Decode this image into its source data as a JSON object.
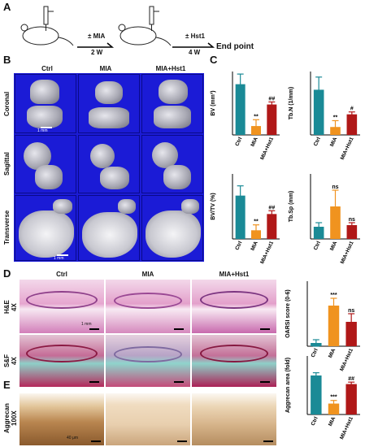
{
  "panel_letters": {
    "A": "A",
    "B": "B",
    "C": "C",
    "D": "D",
    "E": "E"
  },
  "schematic": {
    "step1_label": "± MIA",
    "step1_time": "2 W",
    "step2_label": "± Hst1",
    "step2_time": "4 W",
    "endpoint": "End point"
  },
  "microct": {
    "columns": [
      "Ctrl",
      "MIA",
      "MIA+Hst1"
    ],
    "rows": [
      "Coronal",
      "Sagittal",
      "Transverse"
    ],
    "scale_coronal": "1 mm",
    "scale_transverse": "1 mm"
  },
  "histology": {
    "columns": [
      "Ctrl",
      "MIA",
      "MIA+Hst1"
    ],
    "rows": [
      {
        "line1": "H&E",
        "line2": "4X"
      },
      {
        "line1": "S&F",
        "line2": "4X"
      }
    ],
    "scale_label": "1 mm"
  },
  "aggrecan": {
    "row_line1": "Aggrecan",
    "row_line2": "100X",
    "scale_label": "40 μm"
  },
  "colors": {
    "ctrl": "#1a8a96",
    "mia": "#f0931f",
    "hst1": "#b01818",
    "ct_background": "#1b1bd6"
  },
  "chart_data": [
    {
      "type": "bar",
      "ylabel": "BV (mm³)",
      "categories": [
        "Ctrl",
        "MIA",
        "MIA+Hst1"
      ],
      "values": [
        0.4,
        0.07,
        0.24
      ],
      "errors": [
        0.08,
        0.05,
        0.02
      ],
      "ylim": [
        0,
        0.5
      ],
      "annotations": [
        "",
        "**",
        "##"
      ]
    },
    {
      "type": "bar",
      "ylabel": "Tb.N (1/mm)",
      "categories": [
        "Ctrl",
        "MIA",
        "MIA+Hst1"
      ],
      "values": [
        5.7,
        1.0,
        2.6
      ],
      "errors": [
        1.6,
        0.8,
        0.3
      ],
      "ylim": [
        0,
        8
      ],
      "annotations": [
        "",
        "**",
        "#"
      ]
    },
    {
      "type": "bar",
      "ylabel": "BV/TV (%)",
      "categories": [
        "Ctrl",
        "MIA",
        "MIA+Hst1"
      ],
      "values": [
        40,
        8,
        23
      ],
      "errors": [
        9,
        5,
        3
      ],
      "ylim": [
        0,
        60
      ],
      "annotations": [
        "",
        "**",
        "##"
      ]
    },
    {
      "type": "bar",
      "ylabel": "Tb.Sp (mm)",
      "categories": [
        "Ctrl",
        "MIA",
        "MIA+Hst1"
      ],
      "values": [
        0.15,
        0.4,
        0.17
      ],
      "errors": [
        0.05,
        0.2,
        0.03
      ],
      "ylim": [
        0,
        0.8
      ],
      "annotations": [
        "",
        "ns",
        "ns"
      ]
    },
    {
      "type": "bar",
      "ylabel": "OARSI score (0-6)",
      "categories": [
        "Ctrl",
        "MIA",
        "MIA+Hst1"
      ],
      "values": [
        0.4,
        5.0,
        3.0
      ],
      "errors": [
        0.4,
        0.9,
        1.0
      ],
      "ylim": [
        0,
        8
      ],
      "annotations": [
        "",
        "***",
        "ns"
      ]
    },
    {
      "type": "bar",
      "ylabel": "Aggrecan area (fold)",
      "categories": [
        "Ctrl",
        "MIA",
        "MIA+Hst1"
      ],
      "values": [
        1.0,
        0.28,
        0.78
      ],
      "errors": [
        0.07,
        0.08,
        0.05
      ],
      "ylim": [
        0,
        1.5
      ],
      "annotations": [
        "",
        "***",
        "##"
      ]
    }
  ]
}
